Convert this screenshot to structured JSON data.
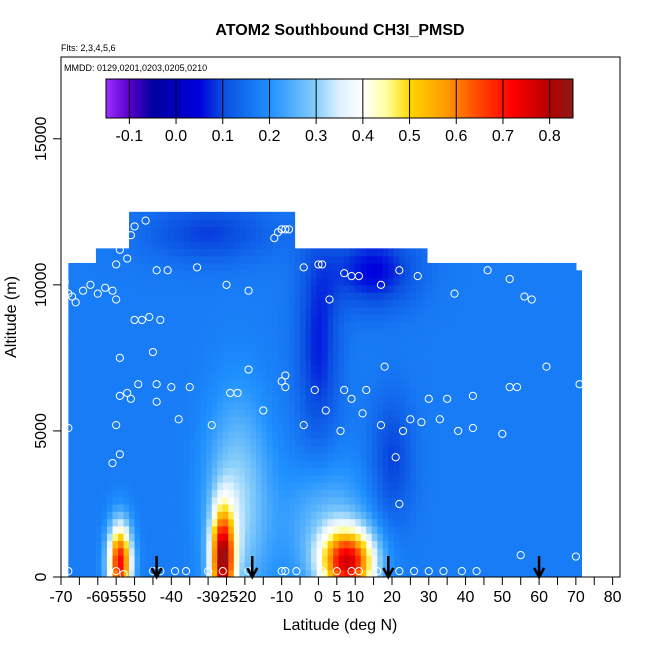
{
  "chart_data": {
    "type": "heatmap",
    "title": "ATOM2 Southbound CH3I_PMSD",
    "subtitle_flights": "Flts: 2,3,4,5,6",
    "subtitle_dates": "MMDD: 0129,0201,0203,0205,0210",
    "xlabel": "Latitude (deg N)",
    "ylabel": "Altitude (m)",
    "xlim": [
      -70,
      82
    ],
    "ylim": [
      0,
      17800
    ],
    "x_ticks": [
      -70,
      -60,
      -55,
      -50,
      -40,
      -30,
      -25,
      -20,
      -10,
      0,
      5,
      10,
      20,
      30,
      40,
      50,
      60,
      70,
      80
    ],
    "x_minor_ticks": [
      -65,
      -45,
      -35,
      -15,
      -5,
      15,
      25,
      35,
      45,
      55,
      65,
      75
    ],
    "y_ticks": [
      0,
      5000,
      10000,
      15000
    ],
    "colorbar": {
      "ticks": [
        -0.1,
        0.0,
        0.1,
        0.2,
        0.3,
        0.4,
        0.5,
        0.6,
        0.7,
        0.8
      ],
      "range": [
        -0.15,
        0.85
      ],
      "stops": [
        {
          "v": -0.15,
          "c": "#9b30ff"
        },
        {
          "v": -0.1,
          "c": "#5a00c8"
        },
        {
          "v": -0.05,
          "c": "#0000a0"
        },
        {
          "v": 0.05,
          "c": "#0000dd"
        },
        {
          "v": 0.1,
          "c": "#0a4de0"
        },
        {
          "v": 0.2,
          "c": "#1e90ff"
        },
        {
          "v": 0.3,
          "c": "#87cefa"
        },
        {
          "v": 0.35,
          "c": "#dff1ff"
        },
        {
          "v": 0.4,
          "c": "#ffffff"
        },
        {
          "v": 0.45,
          "c": "#ffffa0"
        },
        {
          "v": 0.5,
          "c": "#ffd700"
        },
        {
          "v": 0.58,
          "c": "#ff9900"
        },
        {
          "v": 0.65,
          "c": "#ff4500"
        },
        {
          "v": 0.72,
          "c": "#ff0000"
        },
        {
          "v": 0.8,
          "c": "#b40000"
        },
        {
          "v": 0.85,
          "c": "#8b1a1a"
        }
      ]
    },
    "field_blobs": [
      {
        "x": -54,
        "y": 500,
        "sx": 2.2,
        "sy": 900,
        "a": 0.55
      },
      {
        "x": -26,
        "y": 600,
        "sx": 2.2,
        "sy": 1200,
        "a": 0.6
      },
      {
        "x": 8,
        "y": 500,
        "sx": 5,
        "sy": 800,
        "a": 0.55
      },
      {
        "x": -22,
        "y": 2500,
        "sx": 6,
        "sy": 2500,
        "a": 0.15
      },
      {
        "x": 2,
        "y": 1800,
        "sx": 8,
        "sy": 1500,
        "a": 0.1
      },
      {
        "x": 15,
        "y": 10500,
        "sx": 8,
        "sy": 900,
        "a": -0.12
      },
      {
        "x": 0,
        "y": 8000,
        "sx": 4,
        "sy": 2500,
        "a": -0.1
      },
      {
        "x": 20,
        "y": 4000,
        "sx": 4,
        "sy": 1500,
        "a": -0.08
      },
      {
        "x": -30,
        "y": 11800,
        "sx": 12,
        "sy": 700,
        "a": -0.08
      }
    ],
    "base_value": 0.17,
    "sample_points": [
      [
        -68,
        200
      ],
      [
        -55,
        200
      ],
      [
        -53,
        100
      ],
      [
        -45,
        200
      ],
      [
        -43,
        200
      ],
      [
        -39,
        200
      ],
      [
        -36,
        200
      ],
      [
        -30,
        200
      ],
      [
        -26,
        200
      ],
      [
        -19,
        200
      ],
      [
        -10,
        200
      ],
      [
        -9,
        200
      ],
      [
        -6,
        200
      ],
      [
        1,
        200
      ],
      [
        5,
        200
      ],
      [
        9,
        200
      ],
      [
        11,
        200
      ],
      [
        16,
        200
      ],
      [
        22,
        200
      ],
      [
        26,
        200
      ],
      [
        30,
        200
      ],
      [
        34,
        200
      ],
      [
        39,
        200
      ],
      [
        43,
        200
      ],
      [
        55,
        750
      ],
      [
        70,
        700
      ],
      [
        -56,
        3900
      ],
      [
        -54,
        4200
      ],
      [
        -55,
        5200
      ],
      [
        -68,
        5100
      ],
      [
        -51,
        6100
      ],
      [
        -44,
        6000
      ],
      [
        -38,
        5400
      ],
      [
        -29,
        5200
      ],
      [
        -15,
        5700
      ],
      [
        -4,
        5200
      ],
      [
        2,
        5700
      ],
      [
        6,
        5000
      ],
      [
        9,
        6100
      ],
      [
        12,
        5600
      ],
      [
        13,
        6400
      ],
      [
        21,
        4100
      ],
      [
        23,
        5000
      ],
      [
        25,
        5400
      ],
      [
        28,
        5300
      ],
      [
        30,
        6100
      ],
      [
        38,
        5000
      ],
      [
        42,
        5100
      ],
      [
        42,
        6200
      ],
      [
        50,
        4900
      ],
      [
        52,
        6500
      ],
      [
        54,
        6500
      ],
      [
        -54,
        6200
      ],
      [
        -52,
        6300
      ],
      [
        -49,
        6600
      ],
      [
        -44,
        6600
      ],
      [
        -40,
        6500
      ],
      [
        -35,
        6500
      ],
      [
        -24,
        6300
      ],
      [
        -22,
        6300
      ],
      [
        -19,
        7100
      ],
      [
        -10,
        6700
      ],
      [
        -9,
        6500
      ],
      [
        -9,
        6900
      ],
      [
        -1,
        6400
      ],
      [
        7,
        6400
      ],
      [
        17,
        5200
      ],
      [
        18,
        7200
      ],
      [
        22,
        2500
      ],
      [
        33,
        5400
      ],
      [
        35,
        6100
      ],
      [
        62,
        7200
      ],
      [
        71,
        6600
      ],
      [
        -54,
        7500
      ],
      [
        -45,
        7700
      ],
      [
        -43,
        8800
      ],
      [
        -46,
        8900
      ],
      [
        -48,
        8800
      ],
      [
        -50,
        8800
      ],
      [
        -55,
        9500
      ],
      [
        -56,
        9800
      ],
      [
        -58,
        9900
      ],
      [
        -60,
        9700
      ],
      [
        -62,
        10000
      ],
      [
        -64,
        9800
      ],
      [
        -67,
        9600
      ],
      [
        -68,
        9700
      ],
      [
        -66,
        9400
      ],
      [
        -69,
        10100
      ],
      [
        -52,
        10900
      ],
      [
        -55,
        10700
      ],
      [
        -54,
        11200
      ],
      [
        -51,
        11700
      ],
      [
        -50,
        12000
      ],
      [
        -47,
        12200
      ],
      [
        -41,
        10500
      ],
      [
        -44,
        10500
      ],
      [
        -33,
        10600
      ],
      [
        -25,
        10000
      ],
      [
        -19,
        9800
      ],
      [
        -12,
        11600
      ],
      [
        -11,
        11800
      ],
      [
        -10,
        11900
      ],
      [
        -9,
        11900
      ],
      [
        -8,
        11900
      ],
      [
        -4,
        10600
      ],
      [
        0,
        10700
      ],
      [
        1,
        10700
      ],
      [
        3,
        9500
      ],
      [
        7,
        10400
      ],
      [
        9,
        10300
      ],
      [
        11,
        10300
      ],
      [
        17,
        10000
      ],
      [
        22,
        10500
      ],
      [
        27,
        10300
      ],
      [
        37,
        9700
      ],
      [
        46,
        10500
      ],
      [
        52,
        10200
      ],
      [
        56,
        9600
      ],
      [
        58,
        9500
      ],
      [
        69,
        11200
      ]
    ],
    "arrows_x": [
      -44,
      -18,
      19,
      60
    ],
    "colorbar_divider_ticks": [
      -0.1,
      0.0,
      0.1,
      0.2,
      0.3,
      0.4,
      0.5,
      0.6,
      0.7,
      0.8
    ]
  }
}
